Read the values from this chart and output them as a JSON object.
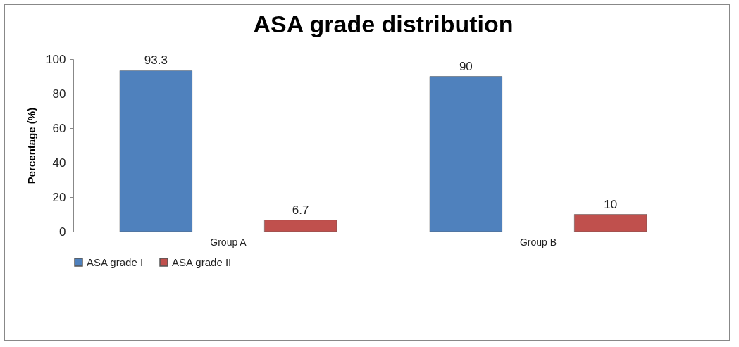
{
  "chart_data": {
    "type": "bar",
    "title": "ASA grade distribution",
    "ylabel": "Percentage (%)",
    "categories": [
      "Group A",
      "Group B"
    ],
    "series": [
      {
        "name": "ASA grade I",
        "color": "#4f81bd",
        "values": [
          93.3,
          90
        ]
      },
      {
        "name": "ASA grade II",
        "color": "#c0504d",
        "values": [
          6.7,
          10
        ]
      }
    ],
    "ylim": [
      0,
      100
    ],
    "yticks": [
      0,
      20,
      40,
      60,
      80,
      100
    ],
    "grid": false,
    "legend": "bottom",
    "data_labels": true
  }
}
